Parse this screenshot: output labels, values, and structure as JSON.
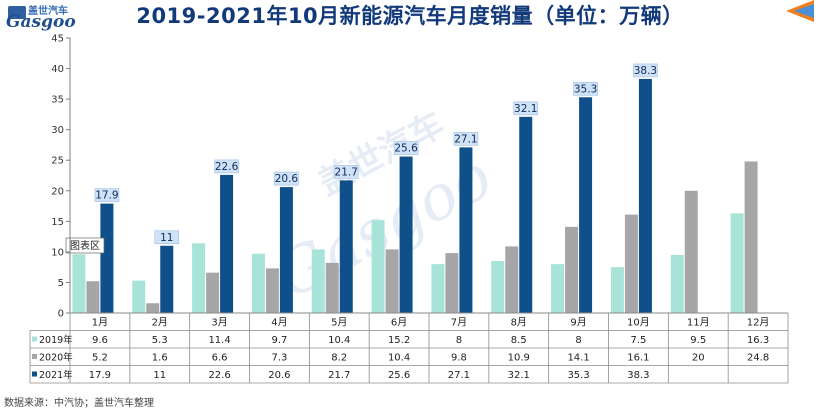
{
  "header": {
    "title": "2019-2021年10月新能源汽车月度销量（单位：万辆）"
  },
  "logo": {
    "brand_text": "盖世汽车",
    "word": "Gasgoo"
  },
  "watermark": {
    "line1": "盖世汽车",
    "line2": "Gasgoo"
  },
  "footer": {
    "source": "数据来源：中汽协；盖世汽车整理"
  },
  "plot_area_label": "图表区",
  "chart_data": {
    "type": "bar",
    "categories": [
      "1月",
      "2月",
      "3月",
      "4月",
      "5月",
      "6月",
      "7月",
      "8月",
      "9月",
      "10月",
      "11月",
      "12月"
    ],
    "series": [
      {
        "name": "2019年",
        "color": "#a8e3d9",
        "values": [
          9.6,
          5.3,
          11.4,
          9.7,
          10.4,
          15.2,
          8,
          8.5,
          8,
          7.5,
          9.5,
          16.3
        ]
      },
      {
        "name": "2020年",
        "color": "#a6a6a6",
        "values": [
          5.2,
          1.6,
          6.6,
          7.3,
          8.2,
          10.4,
          9.8,
          10.9,
          14.1,
          16.1,
          20,
          24.8
        ]
      },
      {
        "name": "2021年",
        "color": "#0f4f8a",
        "values": [
          17.9,
          11,
          22.6,
          20.6,
          21.7,
          25.6,
          27.1,
          32.1,
          35.3,
          38.3,
          null,
          null
        ]
      }
    ],
    "y_ticks": [
      0,
      5,
      10,
      15,
      20,
      25,
      30,
      35,
      40,
      45
    ],
    "ylim": [
      0,
      45
    ],
    "data_labels_series": "2021年",
    "data_table": true,
    "grid": false,
    "legend": "data-table"
  }
}
